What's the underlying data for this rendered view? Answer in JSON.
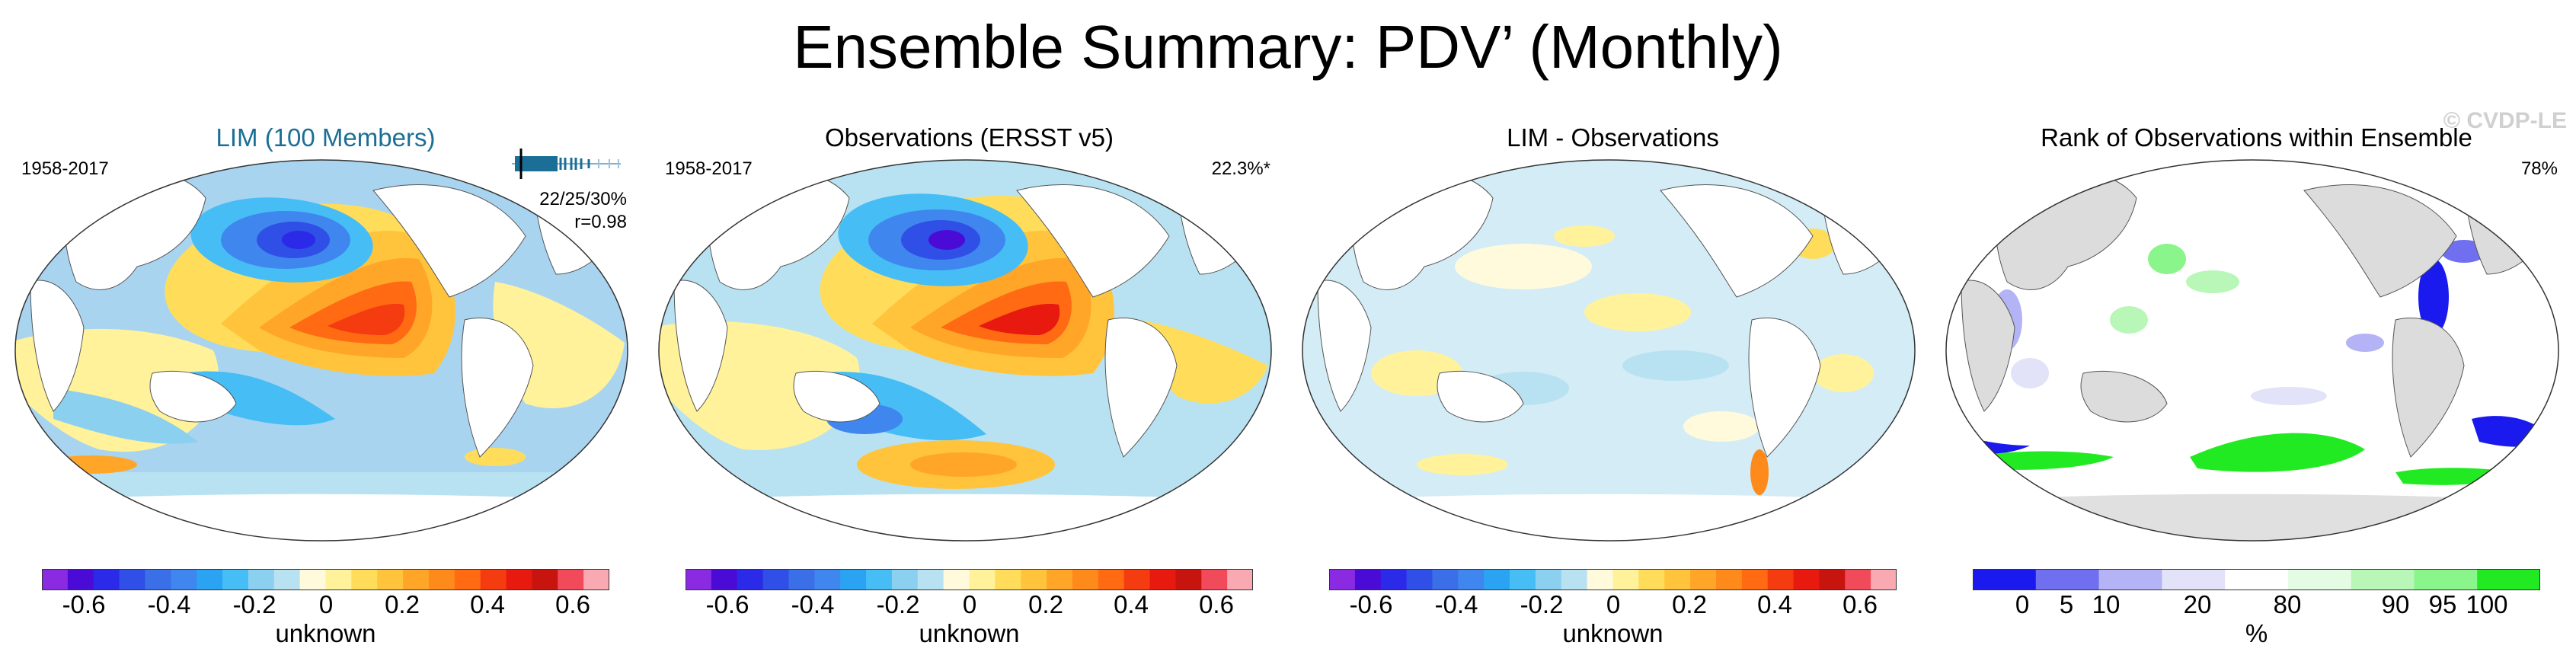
{
  "title": "Ensemble Summary: PDV’ (Monthly)",
  "watermark": "© CVDP-LE",
  "colors": {
    "diverging": [
      "#8a2be2",
      "#4b0bd6",
      "#2a2ae8",
      "#2f4fe6",
      "#3b6fe8",
      "#3f86ee",
      "#2aa4f2",
      "#46bdf5",
      "#8cd0f0",
      "#b8e2f2",
      "#fffadc",
      "#fff29a",
      "#ffdd5a",
      "#ffc43b",
      "#ffa628",
      "#ff8a1c",
      "#ff6a13",
      "#f53c10",
      "#e8190e",
      "#c7140f",
      "#f04a5b",
      "#f8a9b2"
    ],
    "rank": [
      "#1a1aee",
      "#6f6ff0",
      "#b3b3f5",
      "#e2e2f8",
      "#ffffff",
      "#e4fbe4",
      "#b8f7b8",
      "#8af58a",
      "#22ea22"
    ]
  },
  "panels": [
    {
      "title": "LIM (100 Members)",
      "years": "1958-2017",
      "stats_line1": "22/25/30%",
      "stats_line2": "r=0.98",
      "colorbar_ticks": [
        "-0.6",
        "-0.4",
        "-0.2",
        "0",
        "0.2",
        "0.4",
        "0.6"
      ],
      "units": "unknown"
    },
    {
      "title": "Observations (ERSST v5)",
      "years": "1958-2017",
      "right_label": "22.3%*",
      "colorbar_ticks": [
        "-0.6",
        "-0.4",
        "-0.2",
        "0",
        "0.2",
        "0.4",
        "0.6"
      ],
      "units": "unknown"
    },
    {
      "title": "LIM - Observations",
      "colorbar_ticks": [
        "-0.6",
        "-0.4",
        "-0.2",
        "0",
        "0.2",
        "0.4",
        "0.6"
      ],
      "units": "unknown"
    },
    {
      "title": "Rank of Observations within Ensemble",
      "right_label": "78%",
      "colorbar_ticks": [
        "0",
        "5",
        "10",
        "20",
        "80",
        "90",
        "95",
        "100"
      ],
      "units": "%"
    }
  ]
}
